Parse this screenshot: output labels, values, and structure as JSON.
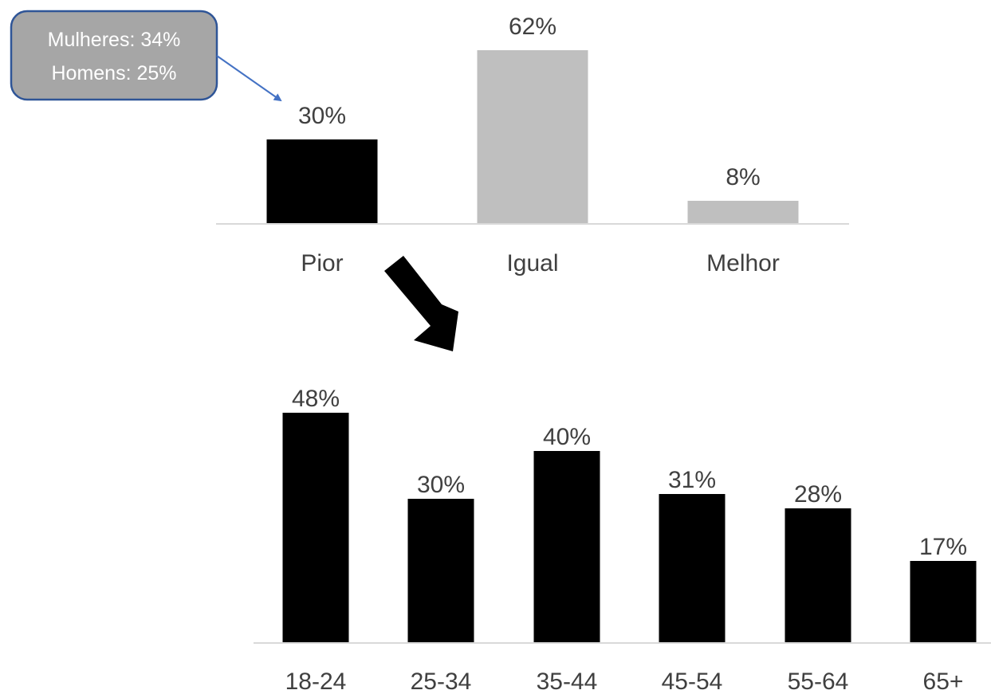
{
  "chart_data": [
    {
      "type": "bar",
      "categories": [
        "Pior",
        "Igual",
        "Melhor"
      ],
      "values": [
        30,
        62,
        8
      ],
      "value_labels": [
        "30%",
        "62%",
        "8%"
      ],
      "bar_colors": [
        "#000000",
        "#bfbfbf",
        "#bfbfbf"
      ],
      "ylim": [
        0,
        62
      ],
      "grid": false
    },
    {
      "type": "bar",
      "categories": [
        "18-24",
        "25-34",
        "35-44",
        "45-54",
        "55-64",
        "65+"
      ],
      "values": [
        48,
        30,
        40,
        31,
        28,
        17
      ],
      "value_labels": [
        "48%",
        "30%",
        "40%",
        "31%",
        "28%",
        "17%"
      ],
      "bar_colors": [
        "#000000",
        "#000000",
        "#000000",
        "#000000",
        "#000000",
        "#000000"
      ],
      "ylim": [
        0,
        48
      ],
      "grid": false
    }
  ],
  "callout": {
    "lines": [
      "Mulheres: 34%",
      "Homens: 25%"
    ],
    "fill_color": "#a6a6a6",
    "border_color": "#2f5597",
    "pointer_color": "#4472c4",
    "points_to": "Pior"
  },
  "drilldown_arrow": {
    "from": "Pior",
    "color": "#000000"
  },
  "colors": {
    "axis_line": "#d9d9d9",
    "text": "#404040"
  }
}
